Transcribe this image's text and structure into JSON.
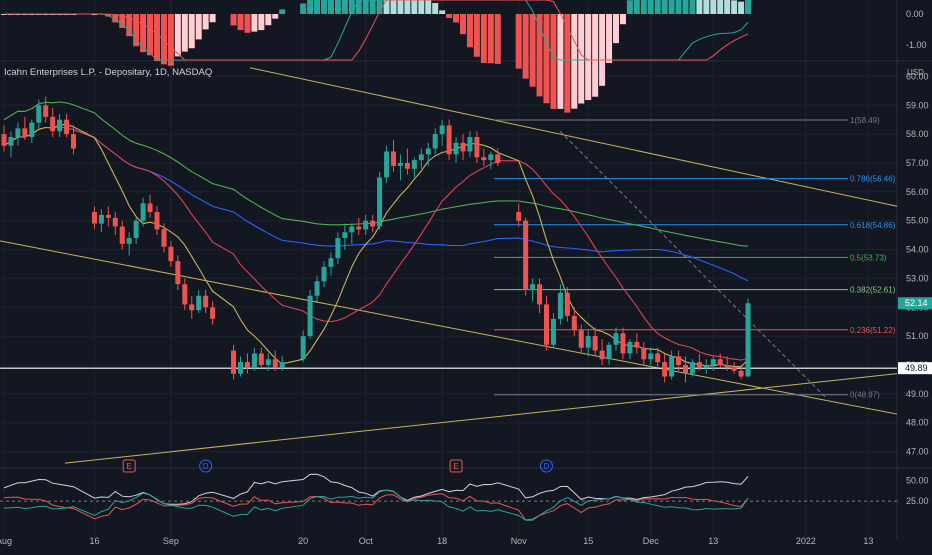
{
  "header": {
    "symbol": "Icahn Enterprises L.P. - Depositary, 1D, NASDAQ",
    "currency": "USD"
  },
  "colors": {
    "background": "#131722",
    "up": "#26a69a",
    "down": "#ef5350",
    "grid": "#1e222d",
    "ma_fast": "#c9b458",
    "ma_mid": "#e0434f",
    "ma_slow": "#2962ff",
    "ma_long": "#4caf50",
    "trendline": "#c9b458",
    "last_price": "#26a69a"
  },
  "chart_data": [
    {
      "type": "candlestick",
      "name": "price",
      "y_ticks": [
        "60.00",
        "59.00",
        "58.00",
        "57.00",
        "56.00",
        "55.00",
        "54.00",
        "53.00",
        "52.00",
        "51.00",
        "50.00",
        "49.00",
        "48.00",
        "47.00"
      ],
      "x_ticks": [
        "Aug",
        "16",
        "Sep",
        "20",
        "Oct",
        "18",
        "Nov",
        "15",
        "Dec",
        "13",
        "2022",
        "13"
      ],
      "ylim": [
        46.5,
        60.5
      ],
      "last_price": "52.14",
      "horizontal_level": "49.89",
      "fib_levels": [
        {
          "label": "1(58.49)",
          "value": 58.49,
          "color": "#787b86"
        },
        {
          "label": "0.786(56.46)",
          "value": 56.46,
          "color": "#2196f3"
        },
        {
          "label": "0.618(54.86)",
          "value": 54.86,
          "color": "#2196f3"
        },
        {
          "label": "0.5(53.73)",
          "value": 53.73,
          "color": "#4caf50"
        },
        {
          "label": "0.382(52.61)",
          "value": 52.61,
          "color": "#81c784"
        },
        {
          "label": "0.236(51.22)",
          "value": 51.22,
          "color": "#ef5350"
        },
        {
          "label": "0(48.97)",
          "value": 48.97,
          "color": "#787b86"
        }
      ],
      "candles": [
        [
          58.0,
          58.3,
          57.4,
          57.6
        ],
        [
          57.6,
          58.1,
          57.2,
          57.9
        ],
        [
          57.9,
          58.4,
          57.6,
          58.2
        ],
        [
          58.2,
          58.6,
          57.8,
          57.9
        ],
        [
          57.9,
          58.5,
          57.7,
          58.4
        ],
        [
          58.4,
          59.2,
          58.2,
          59.0
        ],
        [
          59.0,
          59.3,
          58.4,
          58.6
        ],
        [
          58.6,
          58.9,
          57.9,
          58.1
        ],
        [
          58.1,
          58.7,
          57.9,
          58.5
        ],
        [
          58.5,
          58.7,
          57.9,
          58.0
        ],
        [
          58.0,
          58.3,
          57.3,
          57.5
        ],
        [
          55.3,
          55.5,
          54.7,
          54.9
        ],
        [
          54.9,
          55.4,
          54.6,
          55.2
        ],
        [
          55.2,
          55.5,
          54.8,
          55.1
        ],
        [
          55.1,
          55.3,
          54.5,
          54.8
        ],
        [
          54.8,
          55.0,
          54.0,
          54.2
        ],
        [
          54.2,
          54.6,
          53.8,
          54.4
        ],
        [
          54.4,
          55.1,
          54.2,
          55.0
        ],
        [
          55.0,
          55.8,
          54.8,
          55.6
        ],
        [
          55.6,
          55.9,
          55.1,
          55.3
        ],
        [
          55.3,
          55.5,
          54.5,
          54.7
        ],
        [
          54.7,
          54.9,
          53.9,
          54.1
        ],
        [
          54.1,
          54.3,
          53.4,
          53.6
        ],
        [
          53.6,
          53.8,
          52.6,
          52.8
        ],
        [
          52.8,
          53.0,
          51.9,
          52.1
        ],
        [
          52.1,
          52.4,
          51.6,
          51.9
        ],
        [
          51.9,
          52.6,
          51.8,
          52.4
        ],
        [
          52.4,
          52.6,
          51.8,
          52.0
        ],
        [
          52.0,
          52.2,
          51.4,
          51.6
        ],
        [
          50.5,
          50.7,
          49.5,
          49.7
        ],
        [
          49.7,
          50.3,
          49.6,
          50.1
        ],
        [
          50.1,
          50.4,
          49.7,
          49.9
        ],
        [
          49.9,
          50.6,
          49.8,
          50.4
        ],
        [
          50.4,
          50.6,
          49.9,
          50.0
        ],
        [
          50.0,
          50.4,
          49.8,
          50.2
        ],
        [
          50.2,
          50.5,
          49.8,
          49.9
        ],
        [
          49.9,
          50.3,
          49.8,
          50.1
        ],
        [
          50.2,
          51.2,
          50.1,
          51.0
        ],
        [
          51.0,
          52.6,
          50.9,
          52.4
        ],
        [
          52.4,
          53.1,
          52.2,
          52.9
        ],
        [
          52.9,
          53.6,
          52.7,
          53.4
        ],
        [
          53.4,
          53.9,
          53.1,
          53.7
        ],
        [
          53.7,
          54.6,
          53.5,
          54.4
        ],
        [
          54.4,
          54.9,
          54.0,
          54.6
        ],
        [
          54.6,
          54.9,
          54.2,
          54.8
        ],
        [
          54.8,
          55.1,
          54.5,
          54.7
        ],
        [
          54.7,
          55.2,
          54.5,
          55.0
        ],
        [
          55.0,
          55.2,
          54.6,
          54.8
        ],
        [
          54.8,
          56.7,
          54.7,
          56.5
        ],
        [
          56.5,
          57.6,
          56.3,
          57.4
        ],
        [
          57.4,
          57.8,
          56.7,
          56.9
        ],
        [
          56.9,
          57.3,
          56.4,
          57.0
        ],
        [
          57.0,
          57.5,
          56.6,
          56.8
        ],
        [
          56.8,
          57.2,
          56.5,
          57.1
        ],
        [
          57.1,
          57.5,
          56.8,
          57.3
        ],
        [
          57.3,
          57.7,
          56.9,
          57.5
        ],
        [
          57.5,
          58.2,
          57.3,
          58.0
        ],
        [
          58.0,
          58.5,
          57.6,
          58.3
        ],
        [
          58.3,
          58.5,
          57.1,
          57.3
        ],
        [
          57.3,
          57.9,
          57.0,
          57.7
        ],
        [
          57.7,
          58.0,
          57.1,
          57.4
        ],
        [
          57.4,
          58.1,
          57.2,
          57.9
        ],
        [
          57.9,
          58.1,
          57.0,
          57.2
        ],
        [
          57.2,
          57.5,
          56.9,
          57.1
        ],
        [
          57.1,
          57.4,
          56.8,
          57.3
        ],
        [
          57.3,
          57.5,
          56.9,
          57.0
        ],
        [
          55.3,
          55.6,
          54.8,
          55.0
        ],
        [
          55.0,
          55.1,
          52.4,
          52.6
        ],
        [
          52.6,
          53.0,
          52.2,
          52.8
        ],
        [
          52.8,
          53.0,
          51.8,
          52.1
        ],
        [
          52.1,
          52.4,
          50.5,
          50.7
        ],
        [
          50.7,
          51.8,
          50.6,
          51.6
        ],
        [
          51.6,
          52.8,
          51.4,
          52.5
        ],
        [
          52.5,
          52.7,
          51.5,
          51.7
        ],
        [
          51.7,
          52.0,
          51.0,
          51.2
        ],
        [
          51.2,
          51.4,
          50.4,
          50.6
        ],
        [
          50.6,
          51.2,
          50.3,
          51.0
        ],
        [
          51.0,
          51.3,
          50.3,
          50.5
        ],
        [
          50.5,
          50.9,
          50.0,
          50.2
        ],
        [
          50.2,
          50.8,
          50.0,
          50.7
        ],
        [
          50.7,
          51.3,
          50.5,
          51.1
        ],
        [
          51.1,
          51.3,
          50.2,
          50.4
        ],
        [
          50.4,
          50.9,
          50.2,
          50.8
        ],
        [
          50.8,
          51.1,
          50.4,
          50.6
        ],
        [
          50.6,
          50.8,
          50.0,
          50.2
        ],
        [
          50.2,
          50.6,
          50.0,
          50.4
        ],
        [
          50.4,
          50.6,
          49.9,
          50.1
        ],
        [
          50.1,
          50.4,
          49.4,
          49.6
        ],
        [
          49.6,
          50.5,
          49.5,
          50.3
        ],
        [
          50.3,
          50.5,
          49.8,
          50.0
        ],
        [
          50.0,
          50.3,
          49.4,
          49.7
        ],
        [
          49.7,
          50.2,
          49.6,
          50.1
        ],
        [
          50.1,
          50.4,
          49.8,
          49.9
        ],
        [
          49.9,
          50.2,
          49.7,
          50.0
        ],
        [
          50.0,
          50.3,
          49.8,
          50.2
        ],
        [
          50.2,
          50.4,
          49.9,
          50.0
        ],
        [
          50.0,
          50.3,
          49.8,
          49.9
        ],
        [
          49.9,
          50.1,
          49.7,
          49.8
        ],
        [
          49.8,
          50.0,
          49.5,
          49.6
        ],
        [
          49.6,
          52.3,
          49.6,
          52.14
        ]
      ]
    },
    {
      "type": "histogram",
      "name": "macd",
      "y_ticks": [
        "0.00",
        "-1.00"
      ]
    },
    {
      "type": "line",
      "name": "oscillator",
      "y_ticks": [
        "50.00",
        "25.00"
      ]
    }
  ],
  "events": [
    {
      "x_index": 16,
      "label": "E",
      "kind": "earnings"
    },
    {
      "x_index": 27,
      "label": "D",
      "kind": "dividend"
    },
    {
      "x_index": 59,
      "label": "E",
      "kind": "earnings"
    },
    {
      "x_index": 70,
      "label": "D",
      "kind": "dividend"
    }
  ]
}
